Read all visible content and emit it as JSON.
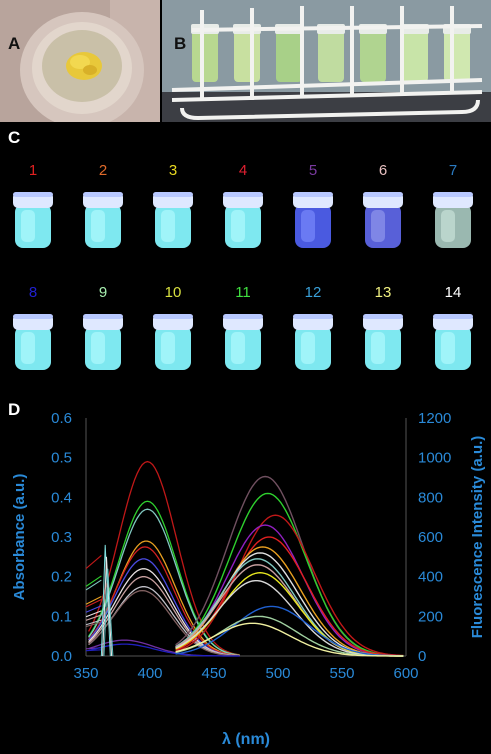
{
  "panels": {
    "a": {
      "label": "A"
    },
    "b": {
      "label": "B"
    },
    "c": {
      "label": "C"
    },
    "d": {
      "label": "D"
    }
  },
  "vials": [
    {
      "num": "1",
      "color": "#e02020"
    },
    {
      "num": "2",
      "color": "#e06a2a"
    },
    {
      "num": "3",
      "color": "#e8d820"
    },
    {
      "num": "4",
      "color": "#e02030"
    },
    {
      "num": "5",
      "color": "#7a3aa0"
    },
    {
      "num": "6",
      "color": "#e8c0c0"
    },
    {
      "num": "7",
      "color": "#2a7ac0"
    },
    {
      "num": "8",
      "color": "#2020d0"
    },
    {
      "num": "9",
      "color": "#a8f0b0"
    },
    {
      "num": "10",
      "color": "#d8e040"
    },
    {
      "num": "11",
      "color": "#40e040"
    },
    {
      "num": "12",
      "color": "#3aa0d8"
    },
    {
      "num": "13",
      "color": "#f0f080"
    },
    {
      "num": "14",
      "color": "#ffffff"
    }
  ],
  "chart_data": {
    "type": "line",
    "xlabel": "λ (nm)",
    "ylabel_left": "Absorbance (a.u.)",
    "ylabel_right": "Fluorescence Intensity (a.u.)",
    "xlim": [
      350,
      600
    ],
    "ylim_left": [
      0,
      0.6
    ],
    "ylim_right": [
      0,
      1200
    ],
    "x_ticks": [
      "350",
      "400",
      "450",
      "500",
      "550",
      "600"
    ],
    "y_ticks_left": [
      "0.0",
      "0.1",
      "0.2",
      "0.3",
      "0.4",
      "0.5",
      "0.6"
    ],
    "y_ticks_right": [
      "0",
      "200",
      "400",
      "600",
      "800",
      "1000",
      "1200"
    ],
    "axis_color": "#2a8ad8",
    "absorbance_series": [
      {
        "color": "#c01818",
        "peak_x": 398,
        "peak_y": 0.49
      },
      {
        "color": "#2ed02e",
        "peak_x": 398,
        "peak_y": 0.39
      },
      {
        "color": "#80c8c0",
        "peak_x": 398,
        "peak_y": 0.37
      },
      {
        "color": "#e8a020",
        "peak_x": 397,
        "peak_y": 0.29
      },
      {
        "color": "#d02020",
        "peak_x": 396,
        "peak_y": 0.275
      },
      {
        "color": "#4a4ae0",
        "peak_x": 395,
        "peak_y": 0.245
      },
      {
        "color": "#e8e0e0",
        "peak_x": 395,
        "peak_y": 0.22
      },
      {
        "color": "#c8a0a0",
        "peak_x": 395,
        "peak_y": 0.2
      },
      {
        "color": "#c0c0c8",
        "peak_x": 395,
        "peak_y": 0.175
      },
      {
        "color": "#806060",
        "peak_x": 394,
        "peak_y": 0.165
      },
      {
        "color": "#7030a0",
        "peak_x": 380,
        "peak_y": 0.04
      },
      {
        "color": "#2020c0",
        "peak_x": 380,
        "peak_y": 0.03
      }
    ],
    "fluorescence_series": [
      {
        "color": "#705060",
        "peak_x": 490,
        "peak_y": 905
      },
      {
        "color": "#2ed02e",
        "peak_x": 492,
        "peak_y": 820
      },
      {
        "color": "#c01818",
        "peak_x": 498,
        "peak_y": 710
      },
      {
        "color": "#9020c0",
        "peak_x": 490,
        "peak_y": 660
      },
      {
        "color": "#e02020",
        "peak_x": 493,
        "peak_y": 600
      },
      {
        "color": "#e8a020",
        "peak_x": 488,
        "peak_y": 550
      },
      {
        "color": "#e0e0e0",
        "peak_x": 486,
        "peak_y": 520
      },
      {
        "color": "#80c8c0",
        "peak_x": 484,
        "peak_y": 490
      },
      {
        "color": "#c8a0a0",
        "peak_x": 484,
        "peak_y": 460
      },
      {
        "color": "#e8e820",
        "peak_x": 486,
        "peak_y": 420
      },
      {
        "color": "#d8d8d8",
        "peak_x": 483,
        "peak_y": 380
      },
      {
        "color": "#2060d0",
        "peak_x": 495,
        "peak_y": 250
      },
      {
        "color": "#a0d0a0",
        "peak_x": 485,
        "peak_y": 200
      },
      {
        "color": "#f0f0a0",
        "peak_x": 480,
        "peak_y": 165
      }
    ]
  }
}
